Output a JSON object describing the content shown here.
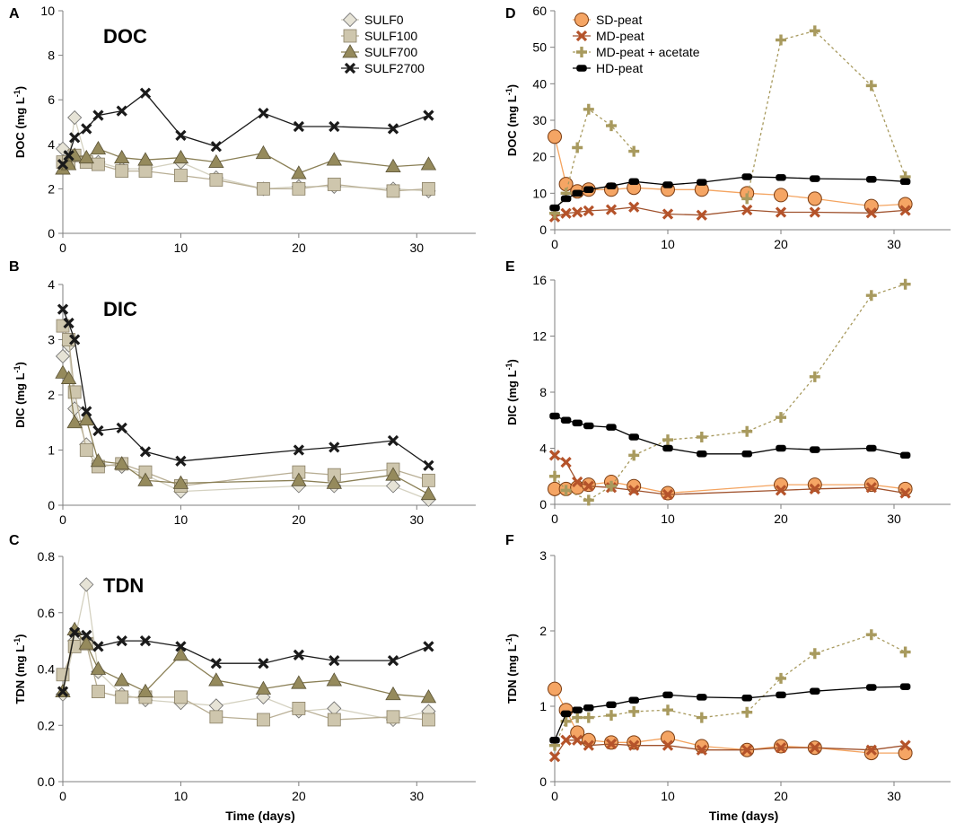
{
  "series_styles": {
    "SULF0": {
      "color": "#d4d1c0",
      "marker": "diamond",
      "fill": "#e6e3d6",
      "stroke": "#6b6b6b",
      "dash": ""
    },
    "SULF100": {
      "color": "#b8ae94",
      "marker": "square",
      "fill": "#cec6ad",
      "stroke": "#8a8066",
      "dash": ""
    },
    "SULF700": {
      "color": "#8a7f55",
      "marker": "triangle",
      "fill": "#958a5c",
      "stroke": "#5b5336",
      "dash": ""
    },
    "SULF2700": {
      "color": "#1a1a1a",
      "marker": "x",
      "fill": "#1a1a1a",
      "stroke": "#1a1a1a",
      "dash": ""
    },
    "SD-peat": {
      "color": "#f4a460",
      "marker": "circle",
      "fill": "#f5a564",
      "stroke": "#7a3b10",
      "dash": ""
    },
    "MD-peat": {
      "color": "#a0522d",
      "marker": "x",
      "fill": "#b5532a",
      "stroke": "#b5532a",
      "dash": ""
    },
    "MD-peat + acetate": {
      "color": "#a89a5e",
      "marker": "plus",
      "fill": "#a89a5e",
      "stroke": "#a89a5e",
      "dash": "3,3"
    },
    "HD-peat": {
      "color": "#000000",
      "marker": "pill",
      "fill": "#000000",
      "stroke": "#000000",
      "dash": ""
    }
  },
  "chart_data": [
    {
      "id": "A",
      "type": "line",
      "letter": "A",
      "title": "DOC",
      "xlabel": "",
      "ylabel": "DOC (mg L",
      "ylabel_sup": "-1",
      "ylabel_end": ")",
      "xlim": [
        0,
        35
      ],
      "ylim": [
        0,
        10
      ],
      "xticks": [
        0,
        10,
        20,
        30
      ],
      "yticks": [
        0,
        2,
        4,
        6,
        8,
        10
      ],
      "ytick_labels": [
        "0",
        "2",
        "4",
        "6",
        "8",
        "10"
      ],
      "legend": [
        "SULF0",
        "SULF100",
        "SULF700",
        "SULF2700"
      ],
      "series": [
        {
          "name": "SULF0",
          "x": [
            0,
            0.5,
            1,
            2,
            3,
            5,
            7,
            10,
            13,
            17,
            20,
            23,
            28,
            31
          ],
          "y": [
            3.8,
            3.2,
            5.2,
            3.3,
            3.2,
            2.9,
            2.9,
            3.2,
            2.5,
            2.0,
            2.1,
            2.1,
            2.0,
            1.9
          ]
        },
        {
          "name": "SULF100",
          "x": [
            0,
            0.5,
            1,
            2,
            3,
            5,
            7,
            10,
            13,
            17,
            20,
            23,
            28,
            31
          ],
          "y": [
            3.2,
            3.2,
            3.5,
            3.2,
            3.1,
            2.8,
            2.8,
            2.6,
            2.4,
            2.0,
            2.0,
            2.2,
            1.9,
            2.0
          ]
        },
        {
          "name": "SULF700",
          "x": [
            0,
            0.5,
            1,
            2,
            3,
            5,
            7,
            10,
            13,
            17,
            20,
            23,
            28,
            31
          ],
          "y": [
            2.9,
            3.1,
            3.5,
            3.4,
            3.8,
            3.4,
            3.3,
            3.4,
            3.2,
            3.6,
            2.7,
            3.3,
            3.0,
            3.1
          ]
        },
        {
          "name": "SULF2700",
          "x": [
            0,
            0.5,
            1,
            2,
            3,
            5,
            7,
            10,
            13,
            17,
            20,
            23,
            28,
            31
          ],
          "y": [
            3.1,
            3.5,
            4.3,
            4.7,
            5.3,
            5.5,
            6.3,
            4.4,
            3.9,
            5.4,
            4.8,
            4.8,
            4.7,
            5.3
          ]
        }
      ]
    },
    {
      "id": "B",
      "type": "line",
      "letter": "B",
      "title": "DIC",
      "xlabel": "",
      "ylabel": "DIC (mg L",
      "ylabel_sup": "-1",
      "ylabel_end": ")",
      "xlim": [
        0,
        35
      ],
      "ylim": [
        0,
        4
      ],
      "xticks": [
        0,
        10,
        20,
        30
      ],
      "yticks": [
        0,
        1,
        2,
        3,
        4
      ],
      "ytick_labels": [
        "0",
        "1",
        "2",
        "3",
        "4"
      ],
      "legend": [],
      "series": [
        {
          "name": "SULF0",
          "x": [
            0,
            0.5,
            1,
            2,
            3,
            5,
            7,
            10,
            20,
            23,
            28,
            31
          ],
          "y": [
            2.7,
            2.9,
            1.75,
            1.1,
            0.75,
            0.7,
            0.55,
            0.25,
            0.35,
            0.35,
            0.35,
            0.1
          ]
        },
        {
          "name": "SULF100",
          "x": [
            0,
            0.5,
            1,
            2,
            3,
            5,
            7,
            10,
            20,
            23,
            28,
            31
          ],
          "y": [
            3.25,
            3.0,
            2.05,
            1.0,
            0.7,
            0.75,
            0.6,
            0.35,
            0.6,
            0.55,
            0.65,
            0.45
          ]
        },
        {
          "name": "SULF700",
          "x": [
            0,
            0.5,
            1,
            2,
            3,
            5,
            7,
            10,
            20,
            23,
            28,
            31
          ],
          "y": [
            2.4,
            2.3,
            1.5,
            1.55,
            0.8,
            0.75,
            0.45,
            0.4,
            0.45,
            0.4,
            0.55,
            0.2
          ]
        },
        {
          "name": "SULF2700",
          "x": [
            0,
            0.5,
            1,
            2,
            3,
            5,
            7,
            10,
            20,
            23,
            28,
            31
          ],
          "y": [
            3.55,
            3.3,
            3.0,
            1.7,
            1.35,
            1.4,
            0.97,
            0.8,
            1.0,
            1.05,
            1.17,
            0.72
          ]
        }
      ]
    },
    {
      "id": "C",
      "type": "line",
      "letter": "C",
      "title": "TDN",
      "xlabel": "Time (days)",
      "ylabel": "TDN (mg L",
      "ylabel_sup": "-1",
      "ylabel_end": ")",
      "xlim": [
        0,
        35
      ],
      "ylim": [
        0,
        0.8
      ],
      "xticks": [
        0,
        10,
        20,
        30
      ],
      "yticks": [
        0,
        0.2,
        0.4,
        0.6,
        0.8
      ],
      "ytick_labels": [
        "0.0",
        "0.2",
        "0.4",
        "0.6",
        "0.8"
      ],
      "legend": [],
      "series": [
        {
          "name": "SULF0",
          "x": [
            0,
            1,
            2,
            3,
            5,
            7,
            10,
            13,
            17,
            20,
            23,
            28,
            31
          ],
          "y": [
            0.31,
            0.5,
            0.7,
            0.39,
            0.31,
            0.29,
            0.28,
            0.27,
            0.3,
            0.25,
            0.26,
            0.22,
            0.25
          ]
        },
        {
          "name": "SULF100",
          "x": [
            0,
            1,
            2,
            3,
            5,
            7,
            10,
            13,
            17,
            20,
            23,
            28,
            31
          ],
          "y": [
            0.38,
            0.48,
            0.49,
            0.32,
            0.3,
            0.3,
            0.3,
            0.23,
            0.22,
            0.26,
            0.22,
            0.23,
            0.22
          ]
        },
        {
          "name": "SULF700",
          "x": [
            0,
            1,
            2,
            3,
            5,
            7,
            10,
            13,
            17,
            20,
            23,
            28,
            31
          ],
          "y": [
            0.32,
            0.54,
            0.49,
            0.4,
            0.36,
            0.32,
            0.45,
            0.36,
            0.33,
            0.35,
            0.36,
            0.31,
            0.3
          ]
        },
        {
          "name": "SULF2700",
          "x": [
            0,
            1,
            2,
            3,
            5,
            7,
            10,
            13,
            17,
            20,
            23,
            28,
            31
          ],
          "y": [
            0.32,
            0.53,
            0.52,
            0.48,
            0.5,
            0.5,
            0.48,
            0.42,
            0.42,
            0.45,
            0.43,
            0.43,
            0.48
          ]
        }
      ]
    },
    {
      "id": "D",
      "type": "line",
      "letter": "D",
      "title": "",
      "xlabel": "",
      "ylabel": "DOC (mg L",
      "ylabel_sup": "-1",
      "ylabel_end": ")",
      "xlim": [
        0,
        35
      ],
      "ylim": [
        0,
        60
      ],
      "xticks": [
        0,
        10,
        20,
        30
      ],
      "yticks": [
        0,
        10,
        20,
        30,
        40,
        50,
        60
      ],
      "ytick_labels": [
        "0",
        "10",
        "20",
        "30",
        "40",
        "50",
        "60"
      ],
      "legend": [
        "SD-peat",
        "MD-peat",
        "MD-peat + acetate",
        "HD-peat"
      ],
      "series": [
        {
          "name": "SD-peat",
          "x": [
            0,
            1,
            2,
            3,
            5,
            7,
            10,
            13,
            17,
            20,
            23,
            28,
            31
          ],
          "y": [
            25.5,
            12.5,
            10.5,
            11,
            11,
            11.5,
            11,
            11,
            10,
            9.5,
            8.5,
            6.5,
            7
          ]
        },
        {
          "name": "MD-peat",
          "x": [
            0,
            1,
            2,
            3,
            5,
            7,
            10,
            13,
            17,
            20,
            23,
            28,
            31
          ],
          "y": [
            3.5,
            4.5,
            4.8,
            5.2,
            5.5,
            6.2,
            4.3,
            4.0,
            5.4,
            4.8,
            4.8,
            4.6,
            5.3
          ]
        },
        {
          "name": "MD-peat + acetate",
          "x": [
            0,
            1,
            2,
            3,
            5,
            7
          ],
          "y": [
            4.5,
            10,
            22.5,
            33,
            28.5,
            21.5
          ]
        },
        {
          "name": "MD-peat + acetate",
          "x": [
            17,
            20,
            23,
            28,
            31
          ],
          "y": [
            8.5,
            52,
            54.5,
            39.5,
            14.5
          ]
        },
        {
          "name": "HD-peat",
          "x": [
            0,
            1,
            2,
            3,
            5,
            7,
            10,
            13,
            17,
            20,
            23,
            28,
            31
          ],
          "y": [
            6,
            8.5,
            10,
            11,
            12,
            13.2,
            12.3,
            13,
            14.5,
            14.3,
            14,
            13.8,
            13.2
          ]
        }
      ]
    },
    {
      "id": "E",
      "type": "line",
      "letter": "E",
      "title": "",
      "xlabel": "",
      "ylabel": "DIC (mg L",
      "ylabel_sup": "-1",
      "ylabel_end": ")",
      "xlim": [
        0,
        35
      ],
      "ylim": [
        0,
        16
      ],
      "xticks": [
        0,
        10,
        20,
        30
      ],
      "yticks": [
        0,
        4,
        8,
        12,
        16
      ],
      "ytick_labels": [
        "0",
        "4",
        "8",
        "12",
        "16"
      ],
      "legend": [],
      "series": [
        {
          "name": "SD-peat",
          "x": [
            0,
            1,
            2,
            3,
            5,
            7,
            10,
            20,
            23,
            28,
            31
          ],
          "y": [
            1.1,
            1.1,
            1.2,
            1.4,
            1.6,
            1.3,
            0.8,
            1.4,
            1.4,
            1.4,
            1.1
          ]
        },
        {
          "name": "MD-peat",
          "x": [
            0,
            1,
            2,
            3,
            5,
            7,
            10,
            20,
            23,
            28,
            31
          ],
          "y": [
            3.5,
            3.0,
            1.6,
            1.3,
            1.2,
            1.0,
            0.7,
            1.0,
            1.1,
            1.2,
            0.8
          ]
        },
        {
          "name": "MD-peat + acetate",
          "x": [
            0,
            1,
            3,
            5,
            7,
            10,
            13,
            17,
            20,
            23,
            28,
            31
          ],
          "y": [
            2.0,
            1.0,
            0.3,
            1.3,
            3.5,
            4.6,
            4.8,
            5.2,
            6.2,
            9.1,
            14.9,
            15.7
          ]
        },
        {
          "name": "HD-peat",
          "x": [
            0,
            1,
            2,
            3,
            5,
            7,
            10,
            13,
            17,
            20,
            23,
            28,
            31
          ],
          "y": [
            6.3,
            6.0,
            5.8,
            5.6,
            5.5,
            4.8,
            4.0,
            3.6,
            3.6,
            4.0,
            3.9,
            4.0,
            3.5
          ]
        }
      ]
    },
    {
      "id": "F",
      "type": "line",
      "letter": "F",
      "title": "",
      "xlabel": "Time (days)",
      "ylabel": "TDN (mg L",
      "ylabel_sup": "-1",
      "ylabel_end": ")",
      "xlim": [
        0,
        35
      ],
      "ylim": [
        0,
        3
      ],
      "xticks": [
        0,
        10,
        20,
        30
      ],
      "yticks": [
        0,
        1,
        2,
        3
      ],
      "ytick_labels": [
        "0",
        "1",
        "2",
        "3"
      ],
      "legend": [],
      "series": [
        {
          "name": "SD-peat",
          "x": [
            0,
            1,
            2,
            3,
            5,
            7,
            10,
            13,
            17,
            20,
            23,
            28,
            31
          ],
          "y": [
            1.23,
            0.95,
            0.65,
            0.55,
            0.52,
            0.52,
            0.58,
            0.47,
            0.42,
            0.47,
            0.45,
            0.38,
            0.38
          ]
        },
        {
          "name": "MD-peat",
          "x": [
            0,
            1,
            2,
            3,
            5,
            7,
            10,
            13,
            17,
            20,
            23,
            28,
            31
          ],
          "y": [
            0.33,
            0.55,
            0.55,
            0.48,
            0.5,
            0.48,
            0.48,
            0.42,
            0.42,
            0.45,
            0.45,
            0.42,
            0.48
          ]
        },
        {
          "name": "MD-peat + acetate",
          "x": [
            0,
            1,
            2,
            3,
            5,
            7,
            10,
            13,
            17,
            20,
            23,
            28,
            31
          ],
          "y": [
            0.48,
            0.8,
            0.85,
            0.85,
            0.88,
            0.93,
            0.95,
            0.85,
            0.92,
            1.37,
            1.7,
            1.95,
            1.72
          ]
        },
        {
          "name": "HD-peat",
          "x": [
            0,
            1,
            2,
            3,
            5,
            7,
            10,
            13,
            17,
            20,
            23,
            28,
            31
          ],
          "y": [
            0.55,
            0.9,
            0.95,
            0.98,
            1.02,
            1.08,
            1.15,
            1.12,
            1.11,
            1.15,
            1.2,
            1.25,
            1.26
          ]
        }
      ]
    }
  ]
}
